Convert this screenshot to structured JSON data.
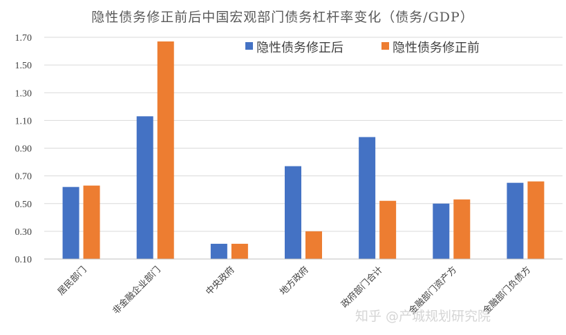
{
  "chart_data": {
    "type": "bar",
    "title": "隐性债务修正前后中国宏观部门债务杠杆率变化（债务/GDP）",
    "xlabel": "",
    "ylabel": "",
    "categories": [
      "居民部门",
      "非金融企业部门",
      "中央政府",
      "地方政府",
      "政府部门合计",
      "金融部门资产方",
      "金融部门负债方"
    ],
    "series": [
      {
        "name": "隐性债务修正后",
        "color": "#4472c4",
        "values": [
          0.62,
          1.13,
          0.21,
          0.77,
          0.98,
          0.5,
          0.65
        ]
      },
      {
        "name": "隐性债务修正前",
        "color": "#ed7d31",
        "values": [
          0.63,
          1.67,
          0.21,
          0.3,
          0.52,
          0.53,
          0.66
        ]
      }
    ],
    "ylim": [
      0.1,
      1.7
    ],
    "yticks": [
      "0.10",
      "0.30",
      "0.50",
      "0.70",
      "0.90",
      "1.10",
      "1.30",
      "1.50",
      "1.70"
    ],
    "grid": true,
    "legend_position": "top-right"
  },
  "watermark": "知乎 @产城规划研究院"
}
